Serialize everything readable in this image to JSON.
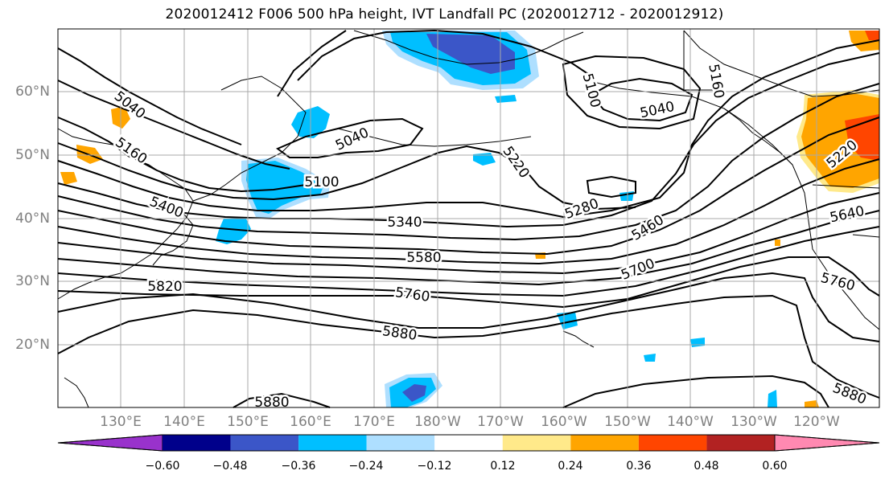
{
  "title": "2020012412 F006 500 hPa height, IVT Landfall PC (2020012712 - 2020012912)",
  "map": {
    "lat_labels": [
      "60°N",
      "50°N",
      "40°N",
      "30°N",
      "20°N"
    ],
    "lon_labels": [
      "130°E",
      "140°E",
      "150°E",
      "160°E",
      "170°E",
      "180°W",
      "170°W",
      "160°W",
      "150°W",
      "140°W",
      "130°W",
      "120°W"
    ],
    "contour_labels": [
      "5040",
      "5160",
      "5400",
      "5820",
      "5040",
      "5100",
      "5340",
      "5580",
      "5760",
      "5880",
      "5880",
      "5100",
      "5040",
      "5160",
      "5220",
      "5280",
      "5460",
      "5700",
      "5640",
      "5760",
      "5880",
      "5220"
    ],
    "contour_interval": 60,
    "line_color": "#000000",
    "coastline_color": "#000000",
    "gridline_color": "#a9a9a9"
  },
  "colorbar": {
    "ticks": [
      "−0.60",
      "−0.48",
      "−0.36",
      "−0.24",
      "−0.12",
      "0.12",
      "0.24",
      "0.36",
      "0.48",
      "0.60"
    ],
    "colors": [
      "#9932cc",
      "#00008b",
      "#3b56c8",
      "#00bfff",
      "#aedfff",
      "#ffffff",
      "#ffe98a",
      "#ffa500",
      "#ff4500",
      "#b22222",
      "#ff89b1"
    ],
    "extend": "both"
  }
}
